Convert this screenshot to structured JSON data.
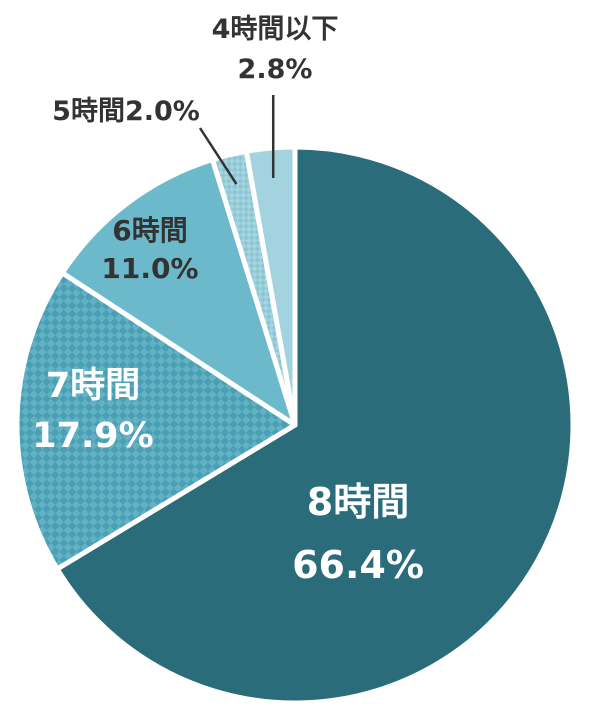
{
  "chart_data": {
    "type": "pie",
    "title": "",
    "start": "12 o'clock",
    "direction": "clockwise",
    "slices": [
      {
        "label": "8時間",
        "value": 66.4,
        "value_label": "66.4%",
        "color": "#2b6c7b",
        "pattern": "solid",
        "label_color": "#ffffff"
      },
      {
        "label": "7時間",
        "value": 17.9,
        "value_label": "17.9%",
        "color": "#4a9fb4",
        "pattern": "checkered",
        "label_color": "#ffffff"
      },
      {
        "label": "6時間",
        "value": 11.0,
        "value_label": "11.0%",
        "color": "#6cb9cb",
        "pattern": "solid",
        "label_color": "#333333"
      },
      {
        "label": "5時間",
        "value": 2.0,
        "value_label": "2.0%",
        "color": "#92cbd9",
        "pattern": "checkered",
        "label_color": "#333333"
      },
      {
        "label": "4時間以下",
        "value": 2.8,
        "value_label": "2.8%",
        "color": "#a3d3df",
        "pattern": "solid",
        "label_color": "#333333"
      }
    ]
  }
}
